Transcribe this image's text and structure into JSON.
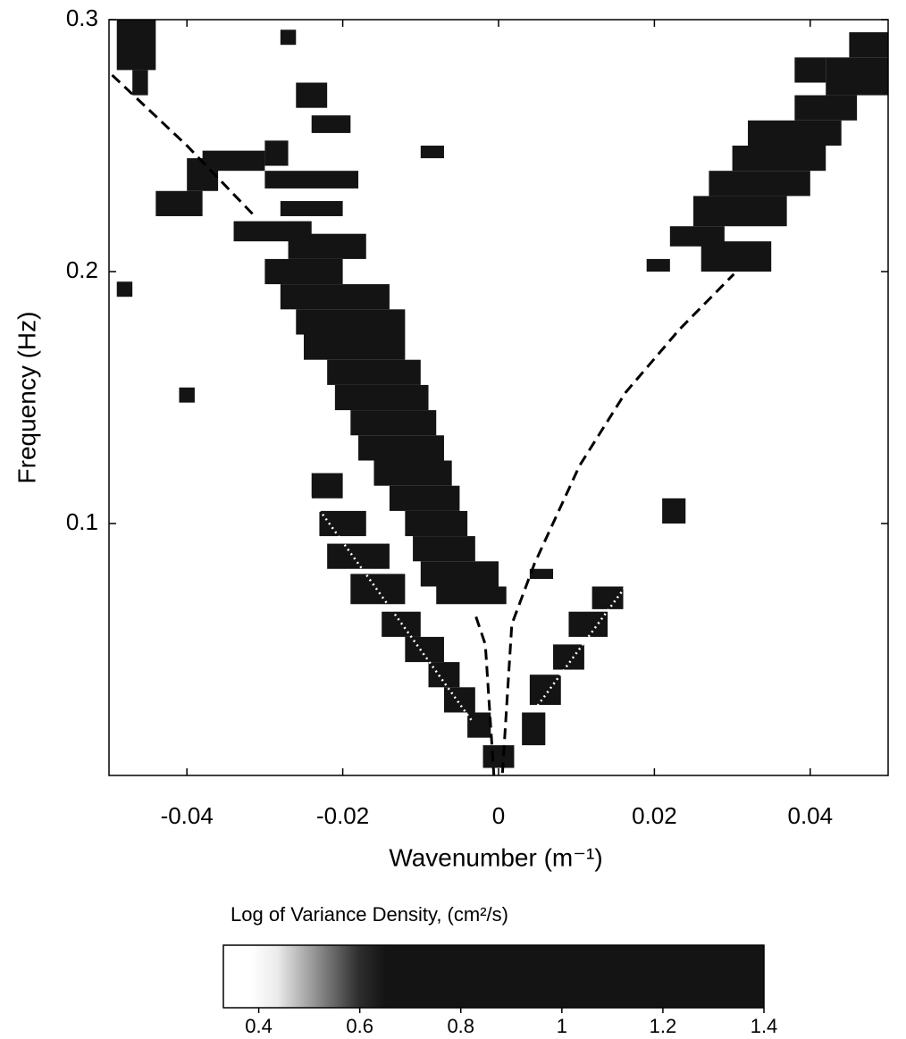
{
  "chart_data": {
    "type": "heatmap",
    "xlabel": "Wavenumber (m⁻¹)",
    "ylabel": "Frequency (Hz)",
    "xlim": [
      -0.05,
      0.05
    ],
    "ylim": [
      0,
      0.3
    ],
    "xticks": [
      -0.04,
      -0.02,
      0,
      0.02,
      0.04
    ],
    "yticks": [
      0.1,
      0.2,
      0.3
    ],
    "colorbar": {
      "title": "Log of Variance Density, (cm²/s)",
      "clim": [
        0.33,
        1.4
      ],
      "ticks": [
        0.4,
        0.6,
        0.8,
        1,
        1.2,
        1.4
      ]
    },
    "cells": [
      {
        "k0": -0.049,
        "k1": -0.044,
        "f0": 0.28,
        "f1": 0.3,
        "value": 1.2
      },
      {
        "k0": -0.047,
        "k1": -0.045,
        "f0": 0.27,
        "f1": 0.28,
        "value": 1.0
      },
      {
        "k0": -0.028,
        "k1": -0.026,
        "f0": 0.29,
        "f1": 0.296,
        "value": 1.0
      },
      {
        "k0": -0.026,
        "k1": -0.022,
        "f0": 0.265,
        "f1": 0.275,
        "value": 1.1
      },
      {
        "k0": -0.024,
        "k1": -0.019,
        "f0": 0.255,
        "f1": 0.262,
        "value": 1.2
      },
      {
        "k0": -0.03,
        "k1": -0.027,
        "f0": 0.242,
        "f1": 0.252,
        "value": 1.2
      },
      {
        "k0": -0.04,
        "k1": -0.036,
        "f0": 0.232,
        "f1": 0.245,
        "value": 1.2
      },
      {
        "k0": -0.044,
        "k1": -0.038,
        "f0": 0.222,
        "f1": 0.232,
        "value": 1.1
      },
      {
        "k0": -0.038,
        "k1": -0.03,
        "f0": 0.24,
        "f1": 0.248,
        "value": 1.1
      },
      {
        "k0": -0.03,
        "k1": -0.018,
        "f0": 0.233,
        "f1": 0.24,
        "value": 1.2
      },
      {
        "k0": -0.028,
        "k1": -0.02,
        "f0": 0.222,
        "f1": 0.228,
        "value": 1.2
      },
      {
        "k0": -0.034,
        "k1": -0.024,
        "f0": 0.212,
        "f1": 0.22,
        "value": 1.1
      },
      {
        "k0": -0.027,
        "k1": -0.017,
        "f0": 0.205,
        "f1": 0.215,
        "value": 1.2
      },
      {
        "k0": -0.03,
        "k1": -0.02,
        "f0": 0.195,
        "f1": 0.205,
        "value": 1.2
      },
      {
        "k0": -0.028,
        "k1": -0.014,
        "f0": 0.185,
        "f1": 0.195,
        "value": 1.3
      },
      {
        "k0": -0.026,
        "k1": -0.012,
        "f0": 0.175,
        "f1": 0.185,
        "value": 1.3
      },
      {
        "k0": -0.025,
        "k1": -0.012,
        "f0": 0.165,
        "f1": 0.175,
        "value": 1.3
      },
      {
        "k0": -0.022,
        "k1": -0.01,
        "f0": 0.155,
        "f1": 0.165,
        "value": 1.3
      },
      {
        "k0": -0.021,
        "k1": -0.009,
        "f0": 0.145,
        "f1": 0.155,
        "value": 1.3
      },
      {
        "k0": -0.019,
        "k1": -0.008,
        "f0": 0.135,
        "f1": 0.145,
        "value": 1.3
      },
      {
        "k0": -0.018,
        "k1": -0.007,
        "f0": 0.125,
        "f1": 0.135,
        "value": 1.3
      },
      {
        "k0": -0.016,
        "k1": -0.006,
        "f0": 0.115,
        "f1": 0.125,
        "value": 1.3
      },
      {
        "k0": -0.014,
        "k1": -0.005,
        "f0": 0.105,
        "f1": 0.115,
        "value": 1.3
      },
      {
        "k0": -0.012,
        "k1": -0.004,
        "f0": 0.095,
        "f1": 0.105,
        "value": 1.3
      },
      {
        "k0": -0.011,
        "k1": -0.003,
        "f0": 0.085,
        "f1": 0.095,
        "value": 1.3
      },
      {
        "k0": -0.01,
        "k1": 0.0,
        "f0": 0.075,
        "f1": 0.085,
        "value": 1.3
      },
      {
        "k0": -0.008,
        "k1": 0.001,
        "f0": 0.068,
        "f1": 0.075,
        "value": 1.2
      },
      {
        "k0": -0.024,
        "k1": -0.02,
        "f0": 0.11,
        "f1": 0.12,
        "value": 1.1
      },
      {
        "k0": -0.023,
        "k1": -0.017,
        "f0": 0.095,
        "f1": 0.105,
        "value": 1.1
      },
      {
        "k0": -0.022,
        "k1": -0.014,
        "f0": 0.082,
        "f1": 0.092,
        "value": 1.2
      },
      {
        "k0": -0.019,
        "k1": -0.012,
        "f0": 0.068,
        "f1": 0.08,
        "value": 1.2
      },
      {
        "k0": -0.015,
        "k1": -0.01,
        "f0": 0.055,
        "f1": 0.065,
        "value": 1.2
      },
      {
        "k0": -0.012,
        "k1": -0.007,
        "f0": 0.045,
        "f1": 0.055,
        "value": 1.2
      },
      {
        "k0": -0.009,
        "k1": -0.005,
        "f0": 0.035,
        "f1": 0.045,
        "value": 1.1
      },
      {
        "k0": -0.007,
        "k1": -0.003,
        "f0": 0.025,
        "f1": 0.035,
        "value": 1.1
      },
      {
        "k0": -0.004,
        "k1": -0.001,
        "f0": 0.015,
        "f1": 0.025,
        "value": 1.0
      },
      {
        "k0": -0.002,
        "k1": 0.002,
        "f0": 0.003,
        "f1": 0.012,
        "value": 1.0
      },
      {
        "k0": 0.003,
        "k1": 0.006,
        "f0": 0.012,
        "f1": 0.025,
        "value": 1.0
      },
      {
        "k0": 0.004,
        "k1": 0.008,
        "f0": 0.028,
        "f1": 0.04,
        "value": 1.1
      },
      {
        "k0": 0.007,
        "k1": 0.011,
        "f0": 0.042,
        "f1": 0.052,
        "value": 1.1
      },
      {
        "k0": 0.009,
        "k1": 0.014,
        "f0": 0.055,
        "f1": 0.065,
        "value": 1.1
      },
      {
        "k0": 0.012,
        "k1": 0.016,
        "f0": 0.066,
        "f1": 0.075,
        "value": 1.0
      },
      {
        "k0": 0.004,
        "k1": 0.007,
        "f0": 0.078,
        "f1": 0.082,
        "value": 0.9
      },
      {
        "k0": 0.021,
        "k1": 0.024,
        "f0": 0.1,
        "f1": 0.11,
        "value": 1.0
      },
      {
        "k0": 0.019,
        "k1": 0.022,
        "f0": 0.2,
        "f1": 0.205,
        "value": 1.0
      },
      {
        "k0": 0.022,
        "k1": 0.029,
        "f0": 0.21,
        "f1": 0.218,
        "value": 1.1
      },
      {
        "k0": 0.026,
        "k1": 0.035,
        "f0": 0.2,
        "f1": 0.212,
        "value": 1.2
      },
      {
        "k0": 0.025,
        "k1": 0.037,
        "f0": 0.218,
        "f1": 0.23,
        "value": 1.3
      },
      {
        "k0": 0.027,
        "k1": 0.04,
        "f0": 0.23,
        "f1": 0.24,
        "value": 1.3
      },
      {
        "k0": 0.03,
        "k1": 0.042,
        "f0": 0.24,
        "f1": 0.25,
        "value": 1.3
      },
      {
        "k0": 0.032,
        "k1": 0.044,
        "f0": 0.25,
        "f1": 0.26,
        "value": 1.3
      },
      {
        "k0": 0.038,
        "k1": 0.046,
        "f0": 0.26,
        "f1": 0.27,
        "value": 1.2
      },
      {
        "k0": 0.042,
        "k1": 0.05,
        "f0": 0.27,
        "f1": 0.285,
        "value": 1.2
      },
      {
        "k0": 0.045,
        "k1": 0.05,
        "f0": 0.285,
        "f1": 0.295,
        "value": 1.2
      },
      {
        "k0": 0.038,
        "k1": 0.042,
        "f0": 0.275,
        "f1": 0.285,
        "value": 1.1
      },
      {
        "k0": -0.049,
        "k1": -0.047,
        "f0": 0.19,
        "f1": 0.196,
        "value": 0.9
      },
      {
        "k0": -0.041,
        "k1": -0.039,
        "f0": 0.148,
        "f1": 0.154,
        "value": 0.9
      },
      {
        "k0": -0.01,
        "k1": -0.007,
        "f0": 0.245,
        "f1": 0.25,
        "value": 0.8
      }
    ],
    "lines": [
      {
        "style": "dashed",
        "color": "#000000",
        "x": [
          -0.0496,
          -0.04,
          -0.0313,
          null,
          -0.0029,
          -0.0017,
          -0.0006
        ],
        "values": [
          0.278,
          0.25,
          0.222,
          null,
          0.063,
          0.052,
          0
        ]
      },
      {
        "style": "dashed",
        "color": "#000000",
        "x": [
          0.0005,
          0.0017,
          0.0046,
          0.0104,
          0.0163,
          0.0232,
          0.0302
        ],
        "values": [
          0.001,
          0.06,
          0.084,
          0.123,
          0.152,
          0.177,
          0.199
        ]
      },
      {
        "style": "dotted",
        "color": "#ffffff",
        "x": [
          -0.025,
          -0.0035
        ],
        "values": [
          0.114,
          0.022
        ]
      },
      {
        "style": "dotted",
        "color": "#ffffff",
        "x": [
          0.0046,
          0.0163
        ],
        "values": [
          0.026,
          0.075
        ]
      }
    ]
  }
}
